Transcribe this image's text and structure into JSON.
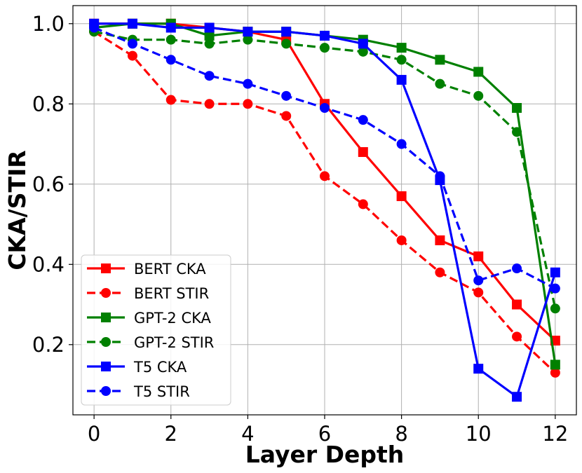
{
  "chart_data": {
    "type": "line",
    "title": "",
    "xlabel": "Layer Depth",
    "ylabel": "CKA/STIR",
    "xlim": [
      -0.55,
      12.55
    ],
    "ylim": [
      0.025,
      1.045
    ],
    "xticks": [
      "0",
      "2",
      "4",
      "6",
      "8",
      "10",
      "12"
    ],
    "yticks": [
      "0.2",
      "0.4",
      "0.6",
      "0.8",
      "1.0"
    ],
    "grid": true,
    "legend_position": "lower-left",
    "x": [
      0,
      1,
      2,
      3,
      4,
      5,
      6,
      7,
      8,
      9,
      10,
      11,
      12
    ],
    "series": [
      {
        "name": "BERT CKA",
        "color": "#ff0000",
        "dashed": false,
        "marker": "square",
        "values": [
          1.0,
          1.0,
          1.0,
          0.99,
          0.98,
          0.96,
          0.8,
          0.68,
          0.57,
          0.46,
          0.42,
          0.3,
          0.21
        ]
      },
      {
        "name": "BERT STIR",
        "color": "#ff0000",
        "dashed": true,
        "marker": "circle",
        "values": [
          0.98,
          0.92,
          0.81,
          0.8,
          0.8,
          0.77,
          0.62,
          0.55,
          0.46,
          0.38,
          0.33,
          0.22,
          0.13
        ]
      },
      {
        "name": "GPT-2 CKA",
        "color": "#008000",
        "dashed": false,
        "marker": "square",
        "values": [
          0.99,
          1.0,
          1.0,
          0.97,
          0.98,
          0.98,
          0.97,
          0.96,
          0.94,
          0.91,
          0.88,
          0.79,
          0.15
        ]
      },
      {
        "name": "GPT-2 STIR",
        "color": "#008000",
        "dashed": true,
        "marker": "circle",
        "values": [
          0.98,
          0.96,
          0.96,
          0.95,
          0.96,
          0.95,
          0.94,
          0.93,
          0.91,
          0.85,
          0.82,
          0.73,
          0.29
        ]
      },
      {
        "name": "T5 CKA",
        "color": "#0000ff",
        "dashed": false,
        "marker": "square",
        "values": [
          1.0,
          1.0,
          0.99,
          0.99,
          0.98,
          0.98,
          0.97,
          0.95,
          0.86,
          0.61,
          0.14,
          0.07,
          0.38
        ]
      },
      {
        "name": "T5 STIR",
        "color": "#0000ff",
        "dashed": true,
        "marker": "circle",
        "values": [
          0.99,
          0.95,
          0.91,
          0.87,
          0.85,
          0.82,
          0.79,
          0.76,
          0.7,
          0.62,
          0.36,
          0.39,
          0.34
        ]
      }
    ]
  }
}
